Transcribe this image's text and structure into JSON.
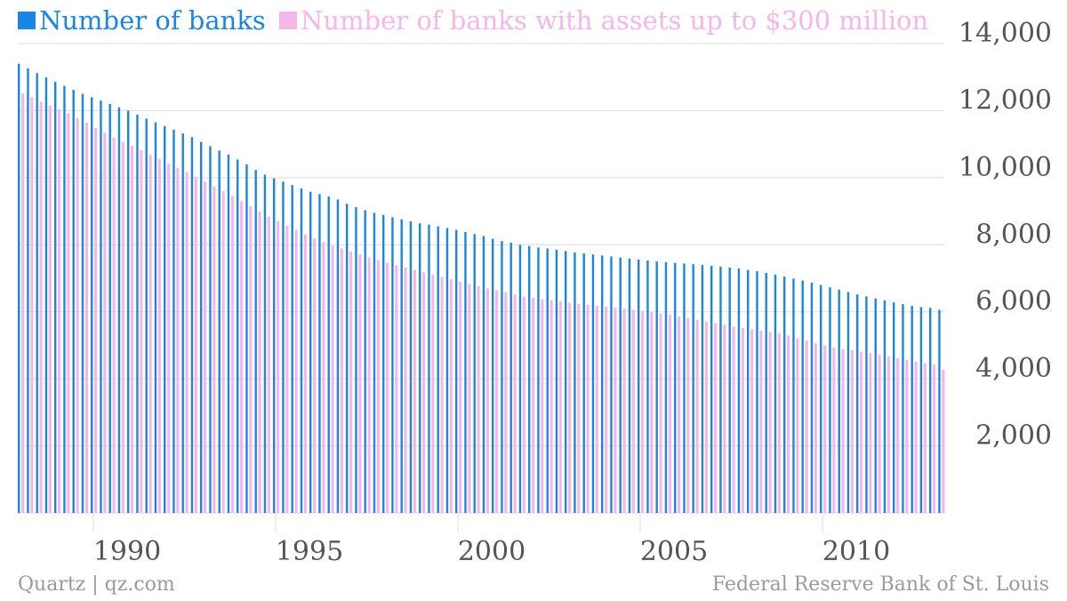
{
  "colors": {
    "series1": "#1a85e3",
    "series2": "#f7b6ea",
    "grid": "#dcdcdc",
    "axis_text": "#555555",
    "footer_text": "#9a9a9a"
  },
  "footer": {
    "credit": "Quartz | qz.com",
    "source": "Federal Reserve Bank of St. Louis"
  },
  "chart_data": {
    "type": "bar",
    "frequency": "quarterly",
    "x_start": "1987-Q1",
    "x_tick_labels": [
      "1990",
      "1995",
      "2000",
      "2005",
      "2010"
    ],
    "y_tick_labels": [
      "2,000",
      "4,000",
      "6,000",
      "8,000",
      "10,000",
      "12,000",
      "14,000"
    ],
    "ylim": [
      0,
      14000
    ],
    "y_axis_position": "right",
    "grid": true,
    "legend": "top-left",
    "series": [
      {
        "name": "Number of banks",
        "values": [
          13400,
          13260,
          13120,
          12990,
          12860,
          12740,
          12620,
          12500,
          12400,
          12300,
          12200,
          12100,
          12000,
          11880,
          11760,
          11650,
          11540,
          11430,
          11320,
          11210,
          11070,
          10940,
          10810,
          10690,
          10540,
          10400,
          10230,
          10090,
          9980,
          9880,
          9780,
          9680,
          9580,
          9510,
          9440,
          9350,
          9220,
          9120,
          9030,
          8950,
          8890,
          8820,
          8760,
          8700,
          8640,
          8600,
          8550,
          8500,
          8440,
          8380,
          8320,
          8260,
          8180,
          8110,
          8060,
          8000,
          7960,
          7920,
          7890,
          7850,
          7810,
          7770,
          7740,
          7710,
          7680,
          7650,
          7620,
          7590,
          7560,
          7530,
          7500,
          7480,
          7460,
          7440,
          7420,
          7400,
          7370,
          7350,
          7320,
          7290,
          7250,
          7210,
          7160,
          7110,
          7050,
          6990,
          6930,
          6870,
          6800,
          6730,
          6660,
          6590,
          6520,
          6460,
          6400,
          6340,
          6280,
          6230,
          6180,
          6140,
          6120,
          6060
        ]
      },
      {
        "name": "Number of banks with assets up to $300 million",
        "values": [
          12520,
          12400,
          12270,
          12150,
          12040,
          11920,
          11780,
          11640,
          11480,
          11340,
          11200,
          11070,
          10950,
          10820,
          10690,
          10560,
          10420,
          10290,
          10160,
          10030,
          9880,
          9740,
          9600,
          9460,
          9300,
          9150,
          8990,
          8840,
          8700,
          8570,
          8440,
          8310,
          8190,
          8080,
          7980,
          7890,
          7800,
          7710,
          7620,
          7540,
          7460,
          7390,
          7320,
          7250,
          7180,
          7110,
          7040,
          6970,
          6900,
          6830,
          6760,
          6700,
          6640,
          6580,
          6520,
          6460,
          6420,
          6380,
          6340,
          6310,
          6270,
          6240,
          6210,
          6180,
          6150,
          6120,
          6090,
          6060,
          6030,
          5990,
          5950,
          5910,
          5860,
          5810,
          5760,
          5710,
          5660,
          5610,
          5560,
          5520,
          5480,
          5440,
          5400,
          5360,
          5290,
          5210,
          5140,
          5070,
          5000,
          4930,
          4890,
          4850,
          4810,
          4770,
          4720,
          4670,
          4620,
          4570,
          4520,
          4470,
          4420,
          4280
        ]
      }
    ]
  }
}
